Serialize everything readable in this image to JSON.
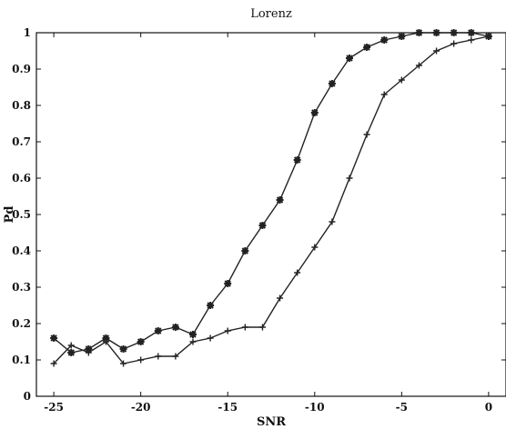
{
  "chart_data": {
    "type": "line",
    "title": "Lorenz",
    "xlabel": "SNR",
    "ylabel": "Pd",
    "xlim": [
      -26,
      1
    ],
    "ylim": [
      0,
      1
    ],
    "xticks": [
      -25,
      -20,
      -15,
      -10,
      -5,
      0
    ],
    "xtick_labels": [
      "-25",
      "-20",
      "-15",
      "-10",
      "-5",
      "0"
    ],
    "yticks": [
      0,
      0.1,
      0.2,
      0.3,
      0.4,
      0.5,
      0.6,
      0.7,
      0.8,
      0.9,
      1
    ],
    "ytick_labels": [
      "0",
      "0.1",
      "0.2",
      "0.3",
      "0.4",
      "0.5",
      "0.6",
      "0.7",
      "0.8",
      "0.9",
      "1"
    ],
    "grid": false,
    "legend": "none",
    "x": [
      -25,
      -24,
      -23,
      -22,
      -21,
      -20,
      -19,
      -18,
      -17,
      -16,
      -15,
      -14,
      -13,
      -12,
      -11,
      -10,
      -9,
      -8,
      -7,
      -6,
      -5,
      -4,
      -3,
      -2,
      -1,
      0
    ],
    "series": [
      {
        "marker": "star",
        "color": "#222222",
        "values": [
          0.16,
          0.12,
          0.13,
          0.16,
          0.13,
          0.15,
          0.18,
          0.19,
          0.17,
          0.25,
          0.31,
          0.4,
          0.47,
          0.54,
          0.65,
          0.78,
          0.86,
          0.93,
          0.96,
          0.98,
          0.99,
          1.0,
          1.0,
          1.0,
          1.0,
          0.99
        ]
      },
      {
        "marker": "plus",
        "color": "#222222",
        "values": [
          0.09,
          0.14,
          0.12,
          0.15,
          0.09,
          0.1,
          0.11,
          0.11,
          0.15,
          0.16,
          0.18,
          0.19,
          0.19,
          0.27,
          0.34,
          0.41,
          0.48,
          0.6,
          0.72,
          0.83,
          0.87,
          0.91,
          0.95,
          0.97,
          0.98,
          0.99
        ]
      }
    ]
  }
}
